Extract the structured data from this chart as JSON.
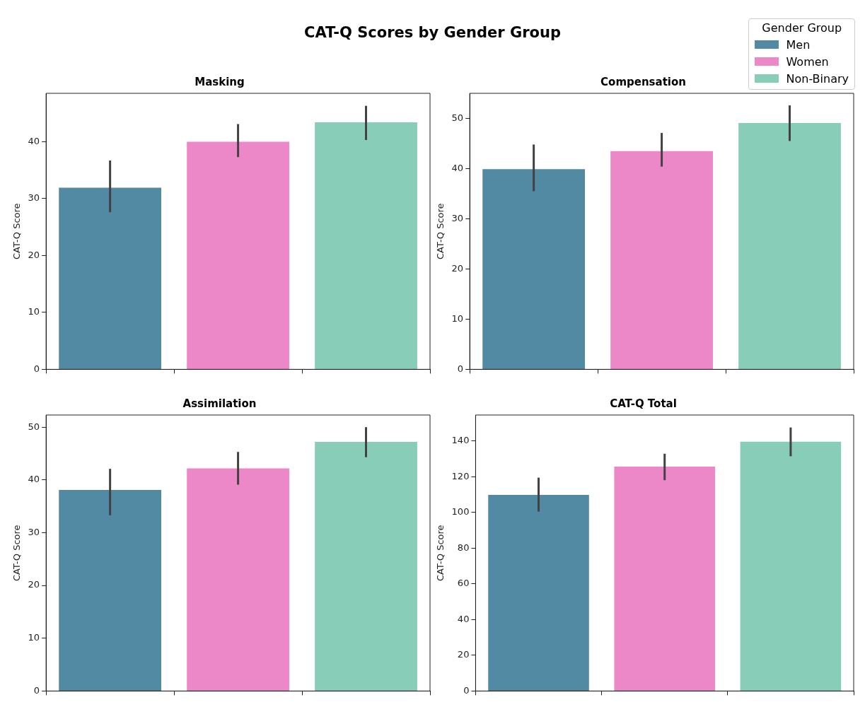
{
  "chart_data": [
    {
      "type": "bar",
      "title": "CAT-Q Scores by Gender Group",
      "subtitle": "Masking",
      "ylabel": "CAT-Q Score",
      "legend": "top right",
      "legend_title": "Gender Group",
      "categories": [
        null,
        null,
        null
      ],
      "ylim": [
        0,
        48.5
      ],
      "yticks": [
        0,
        10,
        20,
        30,
        40
      ],
      "series": [
        {
          "name": "Men",
          "color": "#528aa4",
          "values": [
            31.9,
            null,
            null
          ],
          "errors": [
            [
              27.6,
              36.7
            ],
            null,
            null
          ]
        },
        {
          "name": "Women",
          "color": "#ec87c8",
          "values": [
            null,
            40.0,
            null
          ],
          "errors": [
            null,
            [
              37.3,
              43.1
            ],
            null
          ]
        },
        {
          "name": "Non-Binary",
          "color": "#87cdb8",
          "values": [
            null,
            null,
            43.4
          ],
          "errors": [
            null,
            null,
            [
              40.3,
              46.3
            ]
          ]
        }
      ]
    },
    {
      "type": "bar",
      "title": "Compensation",
      "ylabel": "CAT-Q Score",
      "categories": [
        null,
        null,
        null
      ],
      "ylim": [
        0,
        55
      ],
      "yticks": [
        0,
        10,
        20,
        30,
        40,
        50
      ],
      "series": [
        {
          "color": "#528aa4",
          "values": [
            39.9,
            null,
            null
          ],
          "errors": [
            [
              35.5,
              44.8
            ],
            null,
            null
          ]
        },
        {
          "color": "#ec87c8",
          "values": [
            null,
            43.5,
            null
          ],
          "errors": [
            null,
            [
              40.4,
              47.1
            ],
            null
          ]
        },
        {
          "color": "#87cdb8",
          "values": [
            null,
            null,
            49.1
          ],
          "errors": [
            null,
            null,
            [
              45.5,
              52.6
            ]
          ]
        }
      ]
    },
    {
      "type": "bar",
      "title": "Assimilation",
      "ylabel": "CAT-Q Score",
      "categories": [
        null,
        null,
        null
      ],
      "ylim": [
        0,
        52.3
      ],
      "yticks": [
        0,
        10,
        20,
        30,
        40,
        50
      ],
      "series": [
        {
          "color": "#528aa4",
          "values": [
            38.1,
            null,
            null
          ],
          "errors": [
            [
              33.3,
              42.1
            ],
            null,
            null
          ]
        },
        {
          "color": "#ec87c8",
          "values": [
            null,
            42.2,
            null
          ],
          "errors": [
            null,
            [
              39.1,
              45.3
            ],
            null
          ]
        },
        {
          "color": "#87cdb8",
          "values": [
            null,
            null,
            47.2
          ],
          "errors": [
            null,
            null,
            [
              44.3,
              50.0
            ]
          ]
        }
      ]
    },
    {
      "type": "bar",
      "title": "CAT-Q Total",
      "ylabel": "CAT-Q Score",
      "categories": [
        null,
        null,
        null
      ],
      "ylim": [
        0,
        154.6
      ],
      "yticks": [
        0,
        20,
        40,
        60,
        80,
        100,
        120,
        140
      ],
      "series": [
        {
          "color": "#528aa4",
          "values": [
            109.9,
            null,
            null
          ],
          "errors": [
            [
              100.5,
              119.5
            ],
            null,
            null
          ]
        },
        {
          "color": "#ec87c8",
          "values": [
            null,
            125.7,
            null
          ],
          "errors": [
            null,
            [
              118.1,
              132.9
            ],
            null
          ]
        },
        {
          "color": "#87cdb8",
          "values": [
            null,
            null,
            139.7
          ],
          "errors": [
            null,
            null,
            [
              131.5,
              147.6
            ]
          ]
        }
      ]
    }
  ]
}
